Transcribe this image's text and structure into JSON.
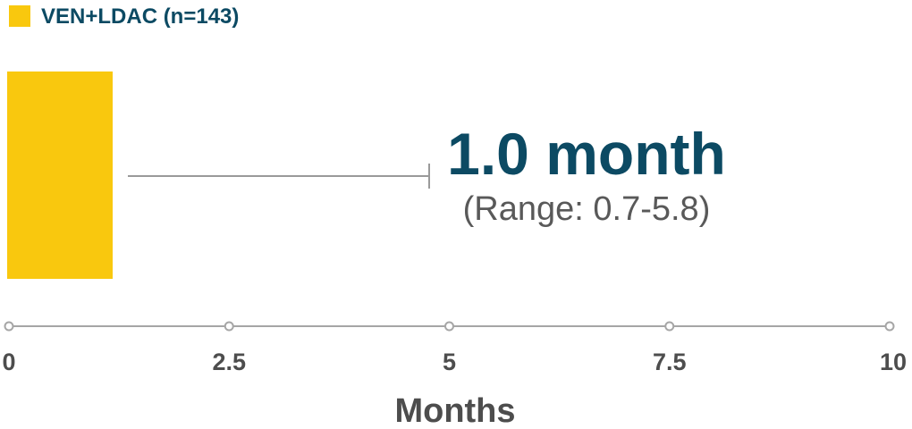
{
  "chart_data": {
    "type": "bar",
    "orientation": "horizontal",
    "series": [
      {
        "name": "VEN+LDAC (n=143)",
        "value": 1.0,
        "range": [
          0.7,
          5.8
        ],
        "color": "#f9c80e"
      }
    ],
    "annotation": {
      "value_label": "1.0 month",
      "range_label": "(Range: 0.7-5.8)"
    },
    "xlabel": "Months",
    "xlim": [
      0,
      10
    ],
    "xticks": [
      0,
      2.5,
      5,
      7.5,
      10
    ],
    "xtick_labels": [
      "0",
      "2.5",
      "5",
      "7.5",
      "10"
    ],
    "legend_position": "top-left",
    "grid": false,
    "colors": {
      "bar": "#f9c80e",
      "text_primary": "#0c4a63",
      "axis": "#a6a6a6",
      "tick_text": "#4d4d4d"
    }
  }
}
